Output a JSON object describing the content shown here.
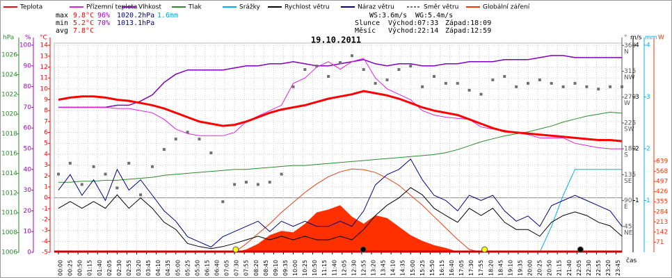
{
  "chart_data": {
    "type": "line",
    "title": "19.10.2011",
    "x_label": "čas",
    "stats": [
      {
        "label": "max",
        "values": [
          "9.8°C",
          "96%",
          "1020.2hPa",
          "1.6mm"
        ]
      },
      {
        "label": "min",
        "values": [
          "5.2°C",
          "70%",
          "1013.1hPa"
        ]
      },
      {
        "label": "avg",
        "values": [
          "7.8°C"
        ]
      }
    ],
    "wind": [
      "WS:3.6m/s",
      "WG:5.4m/s"
    ],
    "sun": {
      "name": "Slunce",
      "rise": "Východ:07:33",
      "set": "Západ:18:09"
    },
    "moon": {
      "name": "Měsíc",
      "rise": "Východ:22:14",
      "set": "Západ:12:59"
    },
    "grid": true,
    "xlim": [
      0,
      1440
    ],
    "xticks": [
      {
        "value": 0,
        "label": "00:00"
      },
      {
        "value": 25,
        "label": "00:25"
      },
      {
        "value": 50,
        "label": "00:50"
      },
      {
        "value": 75,
        "label": "01:15"
      },
      {
        "value": 100,
        "label": "01:40"
      },
      {
        "value": 125,
        "label": "02:05"
      },
      {
        "value": 150,
        "label": "02:30"
      },
      {
        "value": 175,
        "label": "02:55"
      },
      {
        "value": 200,
        "label": "03:20"
      },
      {
        "value": 225,
        "label": "03:45"
      },
      {
        "value": 250,
        "label": "04:10"
      },
      {
        "value": 275,
        "label": "04:35"
      },
      {
        "value": 300,
        "label": "05:00"
      },
      {
        "value": 325,
        "label": "05:25"
      },
      {
        "value": 350,
        "label": "05:50"
      },
      {
        "value": 375,
        "label": "06:15"
      },
      {
        "value": 400,
        "label": "06:40"
      },
      {
        "value": 425,
        "label": "07:05"
      },
      {
        "value": 450,
        "label": "07:30"
      },
      {
        "value": 475,
        "label": "07:55"
      },
      {
        "value": 500,
        "label": "08:20"
      },
      {
        "value": 525,
        "label": "08:45"
      },
      {
        "value": 550,
        "label": "09:10"
      },
      {
        "value": 575,
        "label": "09:35"
      },
      {
        "value": 600,
        "label": "10:00"
      },
      {
        "value": 625,
        "label": "10:25"
      },
      {
        "value": 650,
        "label": "10:50"
      },
      {
        "value": 675,
        "label": "11:15"
      },
      {
        "value": 700,
        "label": "11:40"
      },
      {
        "value": 725,
        "label": "12:05"
      },
      {
        "value": 750,
        "label": "12:30"
      },
      {
        "value": 775,
        "label": "12:55"
      },
      {
        "value": 800,
        "label": "13:20"
      },
      {
        "value": 825,
        "label": "13:45"
      },
      {
        "value": 850,
        "label": "14:10"
      },
      {
        "value": 875,
        "label": "14:35"
      },
      {
        "value": 900,
        "label": "15:00"
      },
      {
        "value": 925,
        "label": "15:25"
      },
      {
        "value": 950,
        "label": "15:50"
      },
      {
        "value": 975,
        "label": "16:15"
      },
      {
        "value": 1000,
        "label": "16:40"
      },
      {
        "value": 1025,
        "label": "17:05"
      },
      {
        "value": 1050,
        "label": "17:30"
      },
      {
        "value": 1075,
        "label": "17:55"
      },
      {
        "value": 1100,
        "label": "18:20"
      },
      {
        "value": 1125,
        "label": "18:45"
      },
      {
        "value": 1150,
        "label": "19:10"
      },
      {
        "value": 1175,
        "label": "19:35"
      },
      {
        "value": 1200,
        "label": "20:00"
      },
      {
        "value": 1225,
        "label": "20:25"
      },
      {
        "value": 1250,
        "label": "20:50"
      },
      {
        "value": 1275,
        "label": "21:15"
      },
      {
        "value": 1300,
        "label": "21:40"
      },
      {
        "value": 1325,
        "label": "22:05"
      },
      {
        "value": 1350,
        "label": "22:30"
      },
      {
        "value": 1375,
        "label": "22:55"
      },
      {
        "value": 1400,
        "label": "23:20"
      },
      {
        "value": 1425,
        "label": "23:45"
      }
    ],
    "axes": {
      "press": {
        "unit": "hPa",
        "color": "#2a8a2a",
        "ylim": [
          1006,
          1027.2
        ],
        "yticks": [
          1006,
          1008,
          1010,
          1012,
          1014,
          1016,
          1018,
          1020,
          1022,
          1024,
          1026
        ]
      },
      "hum": {
        "unit": "%",
        "color": "#a000c0",
        "ylim": [
          0,
          101
        ],
        "yticks": [
          0,
          10,
          20,
          30,
          40,
          50,
          60,
          70,
          80,
          90,
          100
        ]
      },
      "temp": {
        "unit": "°C",
        "color": "#ff0000",
        "ylim": [
          -5,
          14.2
        ],
        "yticks": [
          -5,
          -4,
          -3,
          -2,
          -1,
          0,
          1,
          2,
          3,
          4,
          5,
          6,
          7,
          8,
          9,
          10,
          11,
          12,
          13,
          14
        ]
      },
      "dir": {
        "unit": "°",
        "color": "#555555",
        "ylim": [
          0,
          364
        ],
        "yticks": [
          {
            "value": 45,
            "label": "45",
            "compass": "NE"
          },
          {
            "value": 90,
            "label": "90",
            "compass": "E"
          },
          {
            "value": 135,
            "label": "135",
            "compass": "SE"
          },
          {
            "value": 180,
            "label": "180",
            "compass": "S"
          },
          {
            "value": 225,
            "label": "225",
            "compass": "SW"
          },
          {
            "value": 270,
            "label": "270",
            "compass": "W"
          },
          {
            "value": 315,
            "label": "315",
            "compass": "NW"
          },
          {
            "value": 360,
            "label": "360",
            "compass": "N"
          }
        ]
      },
      "wind": {
        "unit": "m/s",
        "color": "#000000",
        "ylim": [
          0,
          4.04
        ],
        "yticks": [
          1,
          2,
          3,
          4
        ]
      },
      "rain": {
        "unit": "mm",
        "color": "#00b0f0",
        "ylim": [
          0,
          4.04
        ],
        "yticks": [
          1,
          2,
          3,
          4
        ]
      },
      "rad": {
        "unit": "W",
        "color": "#ff3000",
        "ylim": [
          0,
          1468
        ],
        "yticks": [
          71,
          142,
          213,
          284,
          355,
          426,
          497,
          568,
          639
        ]
      }
    },
    "x": [
      0,
      30,
      60,
      90,
      120,
      150,
      180,
      210,
      240,
      270,
      300,
      330,
      360,
      390,
      420,
      450,
      480,
      510,
      540,
      570,
      600,
      630,
      660,
      690,
      720,
      750,
      780,
      810,
      840,
      870,
      900,
      930,
      960,
      990,
      1020,
      1050,
      1080,
      1110,
      1140,
      1170,
      1200,
      1230,
      1260,
      1290,
      1320,
      1350,
      1380,
      1410,
      1440
    ],
    "series": [
      {
        "name": "Teplota",
        "color": "#ff0000",
        "axis": "temp",
        "style": "line",
        "values": [
          9.0,
          9.2,
          9.3,
          9.3,
          9.2,
          9.0,
          8.9,
          8.7,
          8.5,
          8.2,
          7.8,
          7.4,
          7.0,
          6.8,
          6.6,
          6.7,
          7.0,
          7.4,
          7.8,
          8.1,
          8.3,
          8.5,
          8.8,
          9.1,
          9.3,
          9.5,
          9.8,
          9.6,
          9.4,
          9.1,
          8.7,
          8.3,
          8.0,
          7.8,
          7.6,
          7.2,
          6.8,
          6.4,
          6.1,
          6.0,
          5.9,
          5.8,
          5.7,
          5.6,
          5.5,
          5.4,
          5.3,
          5.3,
          5.2
        ]
      },
      {
        "name": "Přízemní teplota",
        "color": "#e020e0",
        "axis": "temp",
        "style": "line",
        "values": [
          8.3,
          8.3,
          8.3,
          8.3,
          8.3,
          8.2,
          8.2,
          8.0,
          7.8,
          7.2,
          6.3,
          5.9,
          5.7,
          5.7,
          5.7,
          6.0,
          7.0,
          7.5,
          8.0,
          8.5,
          10.5,
          11.0,
          12.0,
          12.5,
          11.8,
          12.5,
          12.8,
          11.0,
          10.0,
          9.5,
          9.0,
          8.0,
          7.6,
          7.4,
          7.3,
          7.2,
          6.5,
          6.3,
          6.2,
          6.0,
          5.8,
          5.5,
          5.5,
          5.5,
          5.0,
          4.8,
          4.6,
          4.5,
          4.5
        ]
      },
      {
        "name": "Vlhkost",
        "color": "#8000c0",
        "axis": "hum",
        "style": "line",
        "values": [
          70,
          70,
          70,
          70,
          70,
          71,
          71,
          73,
          76,
          82,
          86,
          88,
          88,
          88,
          88,
          89,
          90,
          90,
          91,
          91,
          92,
          91,
          90,
          90,
          91,
          92,
          93,
          91,
          90,
          91,
          91,
          90,
          90,
          91,
          91,
          92,
          92,
          92,
          93,
          93,
          93,
          94,
          95,
          95,
          94,
          94,
          94,
          94,
          94
        ]
      },
      {
        "name": "Tlak",
        "color": "#2a8a2a",
        "axis": "press",
        "style": "line",
        "values": [
          1013.1,
          1013.1,
          1013.2,
          1013.2,
          1013.3,
          1013.3,
          1013.4,
          1013.5,
          1013.6,
          1013.8,
          1013.9,
          1014.0,
          1014.1,
          1014.2,
          1014.3,
          1014.4,
          1014.4,
          1014.5,
          1014.6,
          1014.7,
          1014.8,
          1014.8,
          1014.9,
          1015.0,
          1015.1,
          1015.2,
          1015.3,
          1015.4,
          1015.5,
          1015.6,
          1015.7,
          1015.8,
          1015.9,
          1016.1,
          1016.4,
          1016.8,
          1017.2,
          1017.5,
          1017.8,
          1018.0,
          1018.2,
          1018.5,
          1018.8,
          1019.2,
          1019.5,
          1019.8,
          1020.0,
          1020.2,
          1020.1
        ]
      },
      {
        "name": "Srážky",
        "color": "#00b0f0",
        "axis": "rain",
        "style": "line",
        "values": [
          0,
          0,
          0,
          0,
          0,
          0,
          0,
          0,
          0,
          0,
          0,
          0,
          0,
          0,
          0,
          0,
          0,
          0,
          0,
          0,
          0,
          0,
          0,
          0,
          0,
          0,
          0,
          0,
          0,
          0,
          0,
          0,
          0,
          0,
          0,
          0,
          0,
          0,
          0,
          0,
          0,
          0,
          0.5,
          1.1,
          1.6,
          1.6,
          1.6,
          1.6,
          1.6
        ]
      },
      {
        "name": "Rychlost větru",
        "color": "#000000",
        "axis": "wind",
        "style": "line",
        "values": [
          0.85,
          0.98,
          0.85,
          0.98,
          0.85,
          1.11,
          0.85,
          1.05,
          0.85,
          0.58,
          0.44,
          0.17,
          0.11,
          0.07,
          0.11,
          0.17,
          0.24,
          0.31,
          0.24,
          0.31,
          0.24,
          0.31,
          0.24,
          0.24,
          0.31,
          0.24,
          0.44,
          0.71,
          0.91,
          1.05,
          1.25,
          1.11,
          0.85,
          0.71,
          0.58,
          0.85,
          0.71,
          0.85,
          0.58,
          0.44,
          0.44,
          0.31,
          0.58,
          0.71,
          0.78,
          0.71,
          0.58,
          0.51,
          0.31
        ]
      },
      {
        "name": "Náraz větru",
        "color": "#000080",
        "axis": "wind",
        "style": "line",
        "values": [
          1.2,
          1.5,
          1.1,
          1.4,
          1.0,
          1.6,
          1.2,
          1.4,
          1.1,
          0.8,
          0.6,
          0.3,
          0.2,
          0.1,
          0.3,
          0.4,
          0.5,
          0.6,
          0.4,
          0.6,
          0.5,
          0.6,
          0.5,
          0.5,
          0.6,
          0.5,
          0.8,
          1.3,
          1.5,
          1.6,
          1.8,
          1.4,
          1.1,
          1.0,
          0.8,
          1.1,
          1.0,
          1.1,
          0.8,
          0.6,
          0.7,
          0.5,
          0.9,
          1.0,
          1.1,
          1.0,
          0.9,
          0.8,
          0.5
        ]
      },
      {
        "name": "Směr větru",
        "color": "#707070",
        "axis": "dir",
        "style": "scatter",
        "values": [
          136,
          155,
          118,
          149,
          136,
          112,
          155,
          100,
          149,
          179,
          197,
          209,
          197,
          173,
          88,
          118,
          122,
          118,
          122,
          136,
          288,
          318,
          324,
          306,
          330,
          342,
          318,
          294,
          300,
          318,
          324,
          288,
          306,
          294,
          294,
          282,
          275,
          300,
          306,
          288,
          294,
          300,
          294,
          288,
          294,
          288,
          284,
          288,
          288
        ]
      },
      {
        "name": "Globální záření",
        "color": "#ff3000",
        "axis": "rad",
        "style": "area",
        "values": [
          0,
          0,
          0,
          0,
          0,
          0,
          0,
          0,
          0,
          0,
          0,
          0,
          0,
          0,
          0,
          0,
          20,
          60,
          120,
          150,
          140,
          200,
          280,
          300,
          330,
          250,
          200,
          260,
          240,
          180,
          120,
          80,
          50,
          30,
          5,
          0,
          0,
          0,
          0,
          0,
          0,
          0,
          0,
          0,
          0,
          0,
          0,
          0,
          0
        ]
      },
      {
        "color": "#e84010",
        "axis": "rad",
        "style": "line",
        "values": [
          0,
          0,
          0,
          0,
          0,
          0,
          0,
          0,
          0,
          0,
          0,
          0,
          0,
          0,
          0,
          0,
          60,
          130,
          200,
          280,
          350,
          420,
          480,
          530,
          565,
          585,
          580,
          560,
          520,
          470,
          400,
          330,
          250,
          170,
          90,
          20,
          0,
          0,
          0,
          0,
          0,
          0,
          0,
          0,
          0,
          0,
          0,
          0,
          0
        ]
      }
    ]
  }
}
